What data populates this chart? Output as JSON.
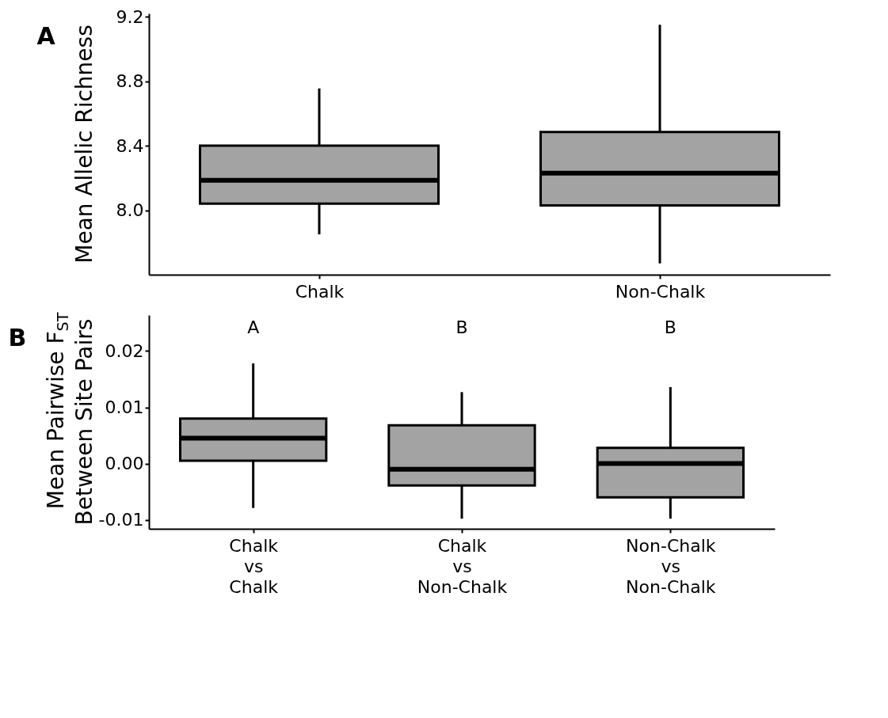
{
  "chart_data": [
    {
      "type": "box",
      "title": "A",
      "ylabel": "Mean Allelic Richness",
      "categories": [
        "Chalk",
        "Non-Chalk"
      ],
      "series": [
        {
          "color": "#a3a3a3",
          "boxes": [
            {
              "low": 7.85,
              "q1": 8.04,
              "median": 8.185,
              "q3": 8.4,
              "high": 8.755
            },
            {
              "low": 7.67,
              "q1": 8.03,
              "median": 8.23,
              "q3": 8.485,
              "high": 9.15
            }
          ]
        }
      ],
      "ylim": [
        7.6,
        9.22
      ],
      "yticks": [
        {
          "value": 8.0,
          "label": "8.0"
        },
        {
          "value": 8.4,
          "label": "8.4"
        },
        {
          "value": 8.8,
          "label": "8.8"
        },
        {
          "value": 9.2,
          "label": "9.2"
        }
      ],
      "grid": false
    },
    {
      "type": "box",
      "title": "B",
      "ylabel": "Mean Pairwise F$_{ST}$\nBetween Site Pairs",
      "categories": [
        "Chalk\nvs\nChalk",
        "Chalk\nvs\nNon-Chalk",
        "Non-Chalk\nvs\nNon-Chalk"
      ],
      "series": [
        {
          "color": "#a3a3a3",
          "boxes": [
            {
              "low": -0.0079,
              "q1": 0.0005,
              "median": 0.0045,
              "q3": 0.008,
              "high": 0.0178
            },
            {
              "low": -0.0098,
              "q1": -0.0039,
              "median": -0.001,
              "q3": 0.0068,
              "high": 0.0127
            },
            {
              "low": -0.0098,
              "q1": -0.006,
              "median": 0.0,
              "q3": 0.0028,
              "high": 0.0136
            }
          ]
        }
      ],
      "annotations": [
        "A",
        "B",
        "B"
      ],
      "ylim": [
        -0.0116,
        0.0264
      ],
      "yticks": [
        {
          "value": -0.01,
          "label": "-0.01"
        },
        {
          "value": 0.0,
          "label": "0.00"
        },
        {
          "value": 0.01,
          "label": "0.01"
        },
        {
          "value": 0.02,
          "label": "0.02"
        }
      ],
      "grid": false
    }
  ]
}
